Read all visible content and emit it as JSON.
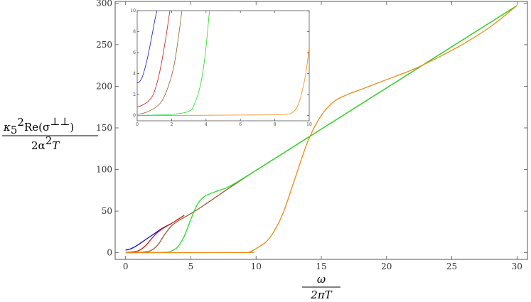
{
  "chart_data": [
    {
      "type": "line",
      "title": "",
      "xlabel": "ω / 2πT",
      "ylabel": "κ5² Re(σ⊥⊥) / 2α²T",
      "ylabel_parts": {
        "num_kappa": "κ",
        "num_kappa_sub": "5",
        "num_sq": "2",
        "num_rest": "Re(σ",
        "num_sup": "⊥⊥",
        "num_close": ")",
        "den": "2α",
        "den_sq": "2",
        "den_T": "T"
      },
      "xlabel_parts": {
        "num": "ω",
        "den": "2πT"
      },
      "xlim": [
        -0.8,
        30.8
      ],
      "ylim": [
        -8,
        302
      ],
      "x_ticks": [
        "0",
        "5",
        "10",
        "15",
        "20",
        "25",
        "30"
      ],
      "x_tick_values": [
        0,
        5,
        10,
        15,
        20,
        25,
        30
      ],
      "y_ticks": [
        "0",
        "50",
        "100",
        "150",
        "200",
        "250",
        "300"
      ],
      "y_tick_values": [
        0,
        50,
        100,
        150,
        200,
        250,
        300
      ],
      "grid": false,
      "series": [
        {
          "color": "#1010c8",
          "x": [
            0,
            0.3,
            0.6,
            1.0,
            1.4,
            1.8,
            2.2,
            2.6,
            3.0,
            3.5
          ],
          "values": [
            3.2,
            4.2,
            6.2,
            10.0,
            14.3,
            18.6,
            22.8,
            27.2,
            31.0,
            35.0
          ]
        },
        {
          "color": "#d01818",
          "x": [
            0,
            0.5,
            1.0,
            1.5,
            2.0,
            2.5,
            3.0,
            3.5,
            4.0,
            4.5
          ],
          "values": [
            0.3,
            0.8,
            2.5,
            8.0,
            17.0,
            25.0,
            30.5,
            35.0,
            40.0,
            45.0
          ]
        },
        {
          "color": "#9a5a2a",
          "x": [
            0,
            1.0,
            1.5,
            2.0,
            2.5,
            3.0,
            3.5,
            4.0,
            4.5,
            5.0,
            6.0,
            10.0,
            20.0,
            30.0
          ],
          "values": [
            0,
            0.3,
            1.0,
            3.0,
            10.0,
            22.0,
            32.0,
            38.0,
            42.5,
            47.0,
            57.0,
            99.0,
            198.0,
            297.0
          ]
        },
        {
          "color": "#22dd22",
          "x": [
            0,
            3.0,
            3.5,
            4.0,
            4.5,
            5.0,
            5.5,
            6.0,
            6.5,
            7.0,
            8.0,
            10.0,
            15.0,
            20.0,
            25.0,
            30.0
          ],
          "values": [
            0,
            0.5,
            2.0,
            7.0,
            20.0,
            40.0,
            58.0,
            67.0,
            71.0,
            74.0,
            80.0,
            99.0,
            148.5,
            198.0,
            247.5,
            297.0
          ]
        },
        {
          "color": "#ee8a14",
          "x": [
            0,
            9.0,
            9.5,
            10.0,
            11.0,
            12.0,
            13.0,
            14.0,
            15.0,
            16.0,
            17.0,
            18.0,
            20.0,
            22.0,
            24.0,
            26.0,
            28.0,
            30.0
          ],
          "values": [
            0,
            0.2,
            1.0,
            5.0,
            17.0,
            45.0,
            90.0,
            135.0,
            165.0,
            182.0,
            190.0,
            196.0,
            208.0,
            220.0,
            235.0,
            252.0,
            272.0,
            297.0
          ]
        }
      ]
    },
    {
      "type": "line",
      "title": "",
      "xlim": [
        0,
        10
      ],
      "ylim": [
        -0.5,
        10
      ],
      "x_ticks": [
        "0",
        "2",
        "4",
        "6",
        "8",
        "10"
      ],
      "x_tick_values": [
        0,
        2,
        4,
        6,
        8,
        10
      ],
      "y_ticks": [
        "0",
        "2",
        "4",
        "6",
        "8",
        "10"
      ],
      "y_tick_values": [
        0,
        2,
        4,
        6,
        8,
        10
      ],
      "grid": false,
      "series": [
        {
          "color": "#1010c8",
          "x": [
            0,
            0.15,
            0.3,
            0.45,
            0.6,
            0.75,
            0.9,
            1.05,
            1.15
          ],
          "values": [
            3.1,
            3.25,
            3.7,
            4.5,
            5.5,
            6.7,
            8.0,
            9.3,
            10.0
          ]
        },
        {
          "color": "#d01818",
          "x": [
            0,
            0.3,
            0.6,
            0.9,
            1.1,
            1.3,
            1.5,
            1.7,
            1.9
          ],
          "values": [
            0.8,
            1.0,
            1.3,
            1.9,
            2.8,
            4.1,
            5.8,
            7.8,
            10.0
          ]
        },
        {
          "color": "#9a5a2a",
          "x": [
            0,
            0.5,
            1.0,
            1.4,
            1.7,
            2.0,
            2.2,
            2.4,
            2.6
          ],
          "values": [
            0.1,
            0.3,
            0.7,
            1.3,
            2.3,
            3.8,
            5.3,
            7.5,
            10.0
          ]
        },
        {
          "color": "#22dd22",
          "x": [
            0,
            1.0,
            2.0,
            3.0,
            3.3,
            3.6,
            3.8,
            4.0,
            4.2
          ],
          "values": [
            0,
            0.05,
            0.1,
            0.4,
            1.0,
            2.4,
            4.0,
            6.5,
            10.0
          ]
        },
        {
          "color": "#ee8a14",
          "x": [
            0,
            3.0,
            6.0,
            8.5,
            9.1,
            9.4,
            9.6,
            9.8,
            10.0
          ],
          "values": [
            0,
            0.02,
            0.05,
            0.1,
            0.4,
            1.2,
            2.4,
            4.0,
            6.5
          ]
        }
      ]
    }
  ]
}
